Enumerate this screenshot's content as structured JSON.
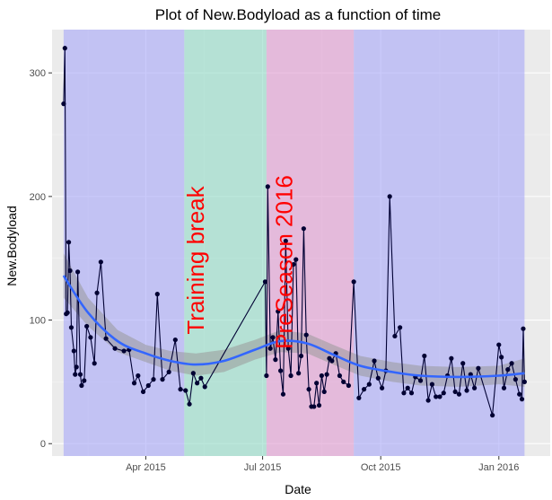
{
  "chart_data": {
    "type": "line",
    "title": "Plot of  New.Bodyload  as a function of time",
    "xlabel": "Date",
    "ylabel": "New.Bodyload",
    "xlim": [
      "2015-01-18",
      "2016-02-10"
    ],
    "ylim": [
      -10,
      335
    ],
    "x_ticks": [
      {
        "date": "2015-04-01",
        "label": "Apr 2015"
      },
      {
        "date": "2015-07-01",
        "label": "Jul 2015"
      },
      {
        "date": "2015-10-01",
        "label": "Oct 2015"
      },
      {
        "date": "2016-01-01",
        "label": "Jan 2016"
      }
    ],
    "y_ticks": [
      0,
      100,
      200,
      300
    ],
    "grid": true,
    "background": "#ebebeb",
    "periods": [
      {
        "start": "2015-01-27",
        "end": "2015-05-01",
        "color": "#a9a9f8",
        "label": ""
      },
      {
        "start": "2015-05-01",
        "end": "2015-07-04",
        "color": "#95dcc8",
        "label": "Training break"
      },
      {
        "start": "2015-07-04",
        "end": "2015-09-10",
        "color": "#e09cd2",
        "label": "PreSeason 2016"
      },
      {
        "start": "2015-09-10",
        "end": "2016-01-21",
        "color": "#a9a9f8",
        "label": ""
      }
    ],
    "annotation_color": "#ff0000",
    "line_color": "#000033",
    "smooth_color": "#3366ff",
    "band_color": "#999999",
    "series": [
      {
        "type": "points",
        "x": [
          "2015-01-27",
          "2015-01-28",
          "2015-01-29",
          "2015-01-30",
          "2015-01-31",
          "2015-02-01",
          "2015-02-02",
          "2015-02-04",
          "2015-02-05",
          "2015-02-06",
          "2015-02-07",
          "2015-02-09",
          "2015-02-10",
          "2015-02-12",
          "2015-02-14",
          "2015-02-17",
          "2015-02-20",
          "2015-02-22",
          "2015-02-25",
          "2015-03-01",
          "2015-03-08",
          "2015-03-15",
          "2015-03-19",
          "2015-03-23",
          "2015-03-26",
          "2015-03-30",
          "2015-04-03",
          "2015-04-07",
          "2015-04-10",
          "2015-04-14",
          "2015-04-19",
          "2015-04-24",
          "2015-04-28",
          "2015-05-02",
          "2015-05-05",
          "2015-05-08",
          "2015-05-11",
          "2015-05-14",
          "2015-05-17",
          "2015-07-03",
          "2015-07-04",
          "2015-07-05",
          "2015-07-07",
          "2015-07-09",
          "2015-07-11",
          "2015-07-13",
          "2015-07-15",
          "2015-07-17",
          "2015-07-19",
          "2015-07-21",
          "2015-07-23",
          "2015-07-25",
          "2015-07-27",
          "2015-07-29",
          "2015-07-31",
          "2015-08-02",
          "2015-08-04",
          "2015-08-06",
          "2015-08-08",
          "2015-08-10",
          "2015-08-12",
          "2015-08-14",
          "2015-08-16",
          "2015-08-18",
          "2015-08-20",
          "2015-08-22",
          "2015-08-24",
          "2015-08-27",
          "2015-08-30",
          "2015-09-02",
          "2015-09-06",
          "2015-09-10",
          "2015-09-14",
          "2015-09-18",
          "2015-09-22",
          "2015-09-26",
          "2015-09-29",
          "2015-10-02",
          "2015-10-05",
          "2015-10-08",
          "2015-10-12",
          "2015-10-16",
          "2015-10-19",
          "2015-10-22",
          "2015-10-25",
          "2015-10-28",
          "2015-11-01",
          "2015-11-04",
          "2015-11-07",
          "2015-11-10",
          "2015-11-13",
          "2015-11-16",
          "2015-11-19",
          "2015-11-22",
          "2015-11-25",
          "2015-11-28",
          "2015-12-01",
          "2015-12-04",
          "2015-12-07",
          "2015-12-10",
          "2015-12-13",
          "2015-12-16",
          "2015-12-27",
          "2016-01-01",
          "2016-01-03",
          "2016-01-05",
          "2016-01-08",
          "2016-01-11",
          "2016-01-14",
          "2016-01-17",
          "2016-01-19",
          "2016-01-20",
          "2016-01-21"
        ],
        "y": [
          275,
          320,
          105,
          106,
          163,
          140,
          94,
          75,
          56,
          62,
          139,
          56,
          47,
          51,
          95,
          86,
          65,
          122,
          147,
          85,
          77,
          75,
          76,
          49,
          55,
          42,
          47,
          52,
          121,
          52,
          58,
          84,
          44,
          43,
          32,
          57,
          49,
          53,
          46,
          131,
          55,
          208,
          77,
          86,
          68,
          107,
          59,
          40,
          164,
          77,
          55,
          145,
          149,
          57,
          71,
          174,
          88,
          44,
          30,
          30,
          49,
          31,
          55,
          42,
          56,
          69,
          67,
          73,
          55,
          50,
          47,
          131,
          37,
          44,
          48,
          67,
          53,
          45,
          59,
          200,
          87,
          94,
          41,
          45,
          41,
          54,
          51,
          71,
          35,
          48,
          38,
          38,
          41,
          55,
          69,
          42,
          40,
          65,
          43,
          56,
          45,
          61,
          23,
          80,
          70,
          45,
          60,
          65,
          52,
          40,
          36,
          93,
          50
        ],
        "color": "#000033"
      },
      {
        "type": "smooth",
        "x": [
          "2015-01-27",
          "2015-02-15",
          "2015-03-10",
          "2015-04-01",
          "2015-04-20",
          "2015-05-10",
          "2015-06-01",
          "2015-06-25",
          "2015-07-15",
          "2015-08-05",
          "2015-08-25",
          "2015-09-15",
          "2015-10-10",
          "2015-11-01",
          "2015-12-01",
          "2016-01-01",
          "2016-01-21"
        ],
        "y": [
          136,
          106,
          83,
          73,
          67,
          64,
          67,
          76,
          83,
          81,
          72,
          63,
          58,
          55,
          54,
          55,
          57
        ],
        "y_lower": [
          118,
          95,
          74,
          66,
          59,
          55,
          58,
          68,
          74,
          73,
          64,
          55,
          50,
          47,
          46,
          48,
          46
        ],
        "y_upper": [
          154,
          118,
          92,
          80,
          75,
          73,
          76,
          84,
          92,
          89,
          80,
          71,
          66,
          63,
          62,
          63,
          69
        ],
        "color": "#3366ff"
      }
    ]
  }
}
